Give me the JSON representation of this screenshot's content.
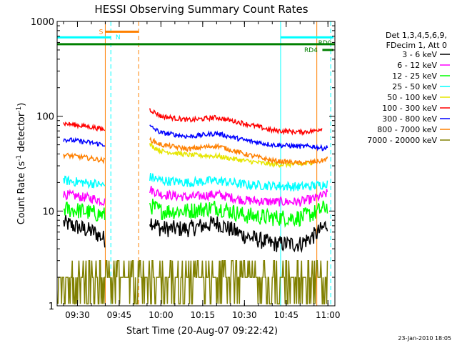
{
  "chart_data": {
    "type": "line",
    "title": "HESSI Observing Summary Count Rates",
    "xlabel": "Start Time (20-Aug-07 09:22:42)",
    "ylabel_main": "Count Rate (s",
    "ylabel_sup1": "-1",
    "ylabel_mid": " detector",
    "ylabel_sup2": "-1",
    "ylabel_end": ")",
    "date_stamp": "23-Jan-2010 18:05",
    "x_scale": "time",
    "y_scale": "log",
    "xlim": [
      "09:22:42",
      "11:02:30"
    ],
    "ylim": [
      1,
      1000
    ],
    "x_ticks": [
      "09:30",
      "09:45",
      "10:00",
      "10:15",
      "10:30",
      "10:45",
      "11:00"
    ],
    "y_ticks": [
      "1",
      "10",
      "100",
      "1000"
    ],
    "legend_header": [
      "Det 1,3,4,5,6,9,",
      "FDecim 1, Att 0"
    ],
    "series": [
      {
        "name": "3 - 6 keV",
        "color": "#000000",
        "x": [
          "09:25",
          "09:32",
          "09:36",
          "09:40",
          "09:52",
          "09:56",
          "10:00",
          "10:10",
          "10:20",
          "10:30",
          "10:40",
          "10:50",
          "10:55",
          "10:58",
          "11:00"
        ],
        "y": [
          7.5,
          6.5,
          6.0,
          5.0,
          null,
          8.0,
          6.5,
          6.5,
          7.5,
          5.5,
          4.5,
          4.5,
          5.5,
          6.5,
          7.5
        ]
      },
      {
        "name": "6 - 12 keV",
        "color": "#ff00ff",
        "x": [
          "09:25",
          "09:32",
          "09:36",
          "09:40",
          "09:52",
          "09:56",
          "10:00",
          "10:10",
          "10:20",
          "10:30",
          "10:40",
          "10:50",
          "10:55",
          "10:58",
          "11:00"
        ],
        "y": [
          15,
          14,
          13.5,
          12.5,
          null,
          17,
          15,
          14,
          15,
          13,
          12.5,
          12.5,
          13.5,
          14.5,
          15.5
        ]
      },
      {
        "name": "12 - 25 keV",
        "color": "#00ff00",
        "x": [
          "09:25",
          "09:32",
          "09:36",
          "09:40",
          "09:52",
          "09:56",
          "10:00",
          "10:10",
          "10:20",
          "10:30",
          "10:40",
          "10:50",
          "10:55",
          "10:58",
          "11:00"
        ],
        "y": [
          10.5,
          10,
          9.5,
          9,
          null,
          11.5,
          10,
          10,
          11,
          9,
          8.5,
          8.5,
          9.5,
          10.5,
          11.5
        ]
      },
      {
        "name": "25 - 50 keV",
        "color": "#00ffff",
        "x": [
          "09:25",
          "09:32",
          "09:36",
          "09:40",
          "09:52",
          "09:56",
          "10:00",
          "10:10",
          "10:20",
          "10:30",
          "10:40",
          "10:50",
          "10:55",
          "10:58",
          "11:00"
        ],
        "y": [
          21,
          20,
          19.5,
          18.5,
          null,
          23,
          21,
          20,
          21,
          19,
          18.5,
          18,
          18.5,
          19,
          20
        ]
      },
      {
        "name": "50 - 100 keV",
        "color": "#e6e600",
        "x": [
          "09:56",
          "10:00",
          "10:10",
          "10:20",
          "10:30",
          "10:40",
          "10:50",
          "10:55"
        ],
        "y": [
          50,
          43,
          39,
          38,
          34,
          31,
          31,
          33
        ]
      },
      {
        "name": "100 - 300 keV",
        "color": "#ff0000",
        "x": [
          "09:25",
          "09:32",
          "09:36",
          "09:40",
          "09:52",
          "09:56",
          "10:00",
          "10:10",
          "10:20",
          "10:30",
          "10:40",
          "10:50",
          "10:55",
          "10:58"
        ],
        "y": [
          84,
          79,
          76,
          72,
          null,
          118,
          100,
          91,
          97,
          84,
          71,
          68,
          70,
          75
        ]
      },
      {
        "name": "300 - 800 keV",
        "color": "#0000ff",
        "x": [
          "09:25",
          "09:32",
          "09:36",
          "09:40",
          "09:52",
          "09:56",
          "10:00",
          "10:10",
          "10:20",
          "10:30",
          "10:40",
          "10:50",
          "10:55",
          "10:58",
          "11:00"
        ],
        "y": [
          57,
          54,
          52,
          50,
          null,
          78,
          67,
          61,
          66,
          56,
          50,
          48,
          48,
          46,
          47
        ]
      },
      {
        "name": "800 - 7000 keV",
        "color": "#ff8000",
        "x": [
          "09:25",
          "09:32",
          "09:36",
          "09:40",
          "09:52",
          "09:56",
          "10:00",
          "10:10",
          "10:20",
          "10:30",
          "10:40",
          "10:50",
          "10:55",
          "10:58",
          "11:00"
        ],
        "y": [
          39,
          37,
          35.5,
          34,
          null,
          57,
          50,
          45,
          49,
          40,
          34,
          32,
          33,
          34,
          36
        ]
      },
      {
        "name": "7000 - 20000 keV",
        "color": "#808000",
        "x": [
          "09:23",
          "09:30",
          "09:38",
          "09:54",
          "10:00",
          "10:20",
          "10:40",
          "10:58",
          "11:00"
        ],
        "y": [
          2.5,
          2.5,
          2.5,
          2.5,
          2.5,
          2.5,
          2.5,
          2.5,
          3.0
        ]
      }
    ],
    "flags": [
      {
        "label": "S",
        "color": "#ff8000",
        "x_start": "09:40",
        "x_end": "09:52",
        "y": 780
      },
      {
        "label": "N",
        "color": "#00ffff",
        "x_start": "09:22:42",
        "x_end": "09:42",
        "y": 680
      },
      {
        "label": "RD0",
        "color": "#00ffff",
        "x_start": "10:43",
        "x_end": "11:02",
        "y": 680
      },
      {
        "label": "",
        "color": "#008000",
        "x_start": "09:22:42",
        "x_end": "11:02:30",
        "y": 575
      },
      {
        "label": "RD4",
        "color": "#008000",
        "x_start": "10:58",
        "x_end": "11:02",
        "y": 500
      }
    ],
    "vlines": [
      {
        "x": "09:22:42",
        "color": "#00ffff",
        "style": "solid"
      },
      {
        "x": "09:40",
        "color": "#ff8000",
        "style": "solid"
      },
      {
        "x": "09:42",
        "color": "#00ffff",
        "style": "dashed"
      },
      {
        "x": "09:52",
        "color": "#ff8000",
        "style": "dashed"
      },
      {
        "x": "10:43",
        "color": "#00ffff",
        "style": "solid"
      },
      {
        "x": "10:56",
        "color": "#ff8000",
        "style": "solid"
      },
      {
        "x": "11:01",
        "color": "#00ffff",
        "style": "dashed"
      }
    ],
    "grid": false,
    "legend_position": "right"
  }
}
